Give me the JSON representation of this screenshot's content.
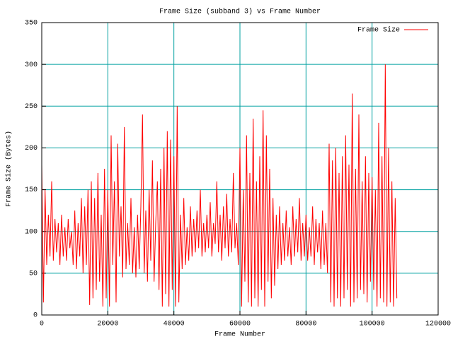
{
  "chart_data": {
    "type": "line",
    "title": "Frame Size (subband 3) vs Frame Number",
    "xlabel": "Frame Number",
    "ylabel": "Frame Size (Bytes)",
    "xlim": [
      0,
      120000
    ],
    "xticks": [
      0,
      20000,
      40000,
      60000,
      80000,
      100000,
      120000
    ],
    "ylim": [
      0,
      350
    ],
    "yticks": [
      0,
      50,
      100,
      150,
      200,
      250,
      300,
      350
    ],
    "grid": true,
    "grid_color": "#00a0a0",
    "legend": "upper right",
    "x": [
      0,
      500,
      1000,
      1500,
      2000,
      2500,
      3000,
      3500,
      4000,
      4500,
      5000,
      5500,
      6000,
      6500,
      7000,
      7500,
      8000,
      8500,
      9000,
      9500,
      10000,
      10500,
      11000,
      11500,
      12000,
      12500,
      13000,
      13500,
      14000,
      14500,
      15000,
      15500,
      16000,
      16500,
      17000,
      17500,
      18000,
      18500,
      19000,
      19500,
      20000,
      20500,
      21000,
      21500,
      22000,
      22500,
      23000,
      23500,
      24000,
      24500,
      25000,
      25500,
      26000,
      26500,
      27000,
      27500,
      28000,
      28500,
      29000,
      29500,
      30000,
      30500,
      31000,
      31500,
      32000,
      32500,
      33000,
      33500,
      34000,
      34500,
      35000,
      35500,
      36000,
      36500,
      37000,
      37500,
      38000,
      38500,
      39000,
      39500,
      40000,
      40500,
      41000,
      41500,
      42000,
      42500,
      43000,
      43500,
      44000,
      44500,
      45000,
      45500,
      46000,
      46500,
      47000,
      47500,
      48000,
      48500,
      49000,
      49500,
      50000,
      50500,
      51000,
      51500,
      52000,
      52500,
      53000,
      53500,
      54000,
      54500,
      55000,
      55500,
      56000,
      56500,
      57000,
      57500,
      58000,
      58500,
      59000,
      59500,
      60000,
      60500,
      61000,
      61500,
      62000,
      62500,
      63000,
      63500,
      64000,
      64500,
      65000,
      65500,
      66000,
      66500,
      67000,
      67500,
      68000,
      68500,
      69000,
      69500,
      70000,
      70500,
      71000,
      71500,
      72000,
      72500,
      73000,
      73500,
      74000,
      74500,
      75000,
      75500,
      76000,
      76500,
      77000,
      77500,
      78000,
      78500,
      79000,
      79500,
      80000,
      80500,
      81000,
      81500,
      82000,
      82500,
      83000,
      83500,
      84000,
      84500,
      85000,
      85500,
      86000,
      86500,
      87000,
      87500,
      88000,
      88500,
      89000,
      89500,
      90000,
      90500,
      91000,
      91500,
      92000,
      92500,
      93000,
      93500,
      94000,
      94500,
      95000,
      95500,
      96000,
      96500,
      97000,
      97500,
      98000,
      98500,
      99000,
      99500,
      100000,
      100500,
      101000,
      101500,
      102000,
      102500,
      103000,
      103500,
      104000,
      104500,
      105000,
      105500,
      106000,
      106500,
      107000,
      107500
    ],
    "series": [
      {
        "name": "Frame Size",
        "color": "#ff0000",
        "values": [
          180,
          15,
          150,
          60,
          120,
          70,
          160,
          65,
          115,
          75,
          110,
          60,
          120,
          70,
          105,
          65,
          115,
          80,
          100,
          60,
          125,
          55,
          110,
          70,
          140,
          50,
          130,
          60,
          150,
          12,
          160,
          20,
          140,
          30,
          170,
          40,
          120,
          10,
          175,
          20,
          150,
          10,
          215,
          60,
          160,
          15,
          205,
          70,
          130,
          45,
          225,
          55,
          110,
          60,
          140,
          50,
          105,
          45,
          120,
          55,
          130,
          240,
          50,
          125,
          40,
          150,
          65,
          185,
          40,
          110,
          160,
          30,
          175,
          10,
          200,
          25,
          220,
          10,
          210,
          30,
          190,
          10,
          250,
          15,
          120,
          55,
          140,
          60,
          105,
          65,
          130,
          70,
          115,
          75,
          125,
          80,
          150,
          70,
          110,
          75,
          120,
          80,
          135,
          70,
          110,
          85,
          160,
          75,
          120,
          65,
          130,
          80,
          145,
          70,
          115,
          75,
          170,
          80,
          110,
          60,
          200,
          10,
          150,
          40,
          215,
          15,
          170,
          10,
          235,
          20,
          160,
          10,
          190,
          30,
          245,
          10,
          215,
          40,
          175,
          20,
          140,
          35,
          120,
          55,
          130,
          60,
          110,
          65,
          125,
          70,
          105,
          60,
          130,
          70,
          115,
          75,
          140,
          65,
          110,
          70,
          120,
          65,
          105,
          70,
          130,
          60,
          115,
          75,
          110,
          55,
          125,
          60,
          110,
          50,
          205,
          15,
          185,
          10,
          200,
          20,
          170,
          10,
          190,
          20,
          215,
          30,
          180,
          10,
          265,
          15,
          175,
          20,
          240,
          30,
          160,
          25,
          190,
          15,
          170,
          40,
          165,
          30,
          150,
          10,
          230,
          20,
          190,
          15,
          300,
          10,
          200,
          15,
          160,
          10,
          140,
          20
        ]
      }
    ]
  }
}
